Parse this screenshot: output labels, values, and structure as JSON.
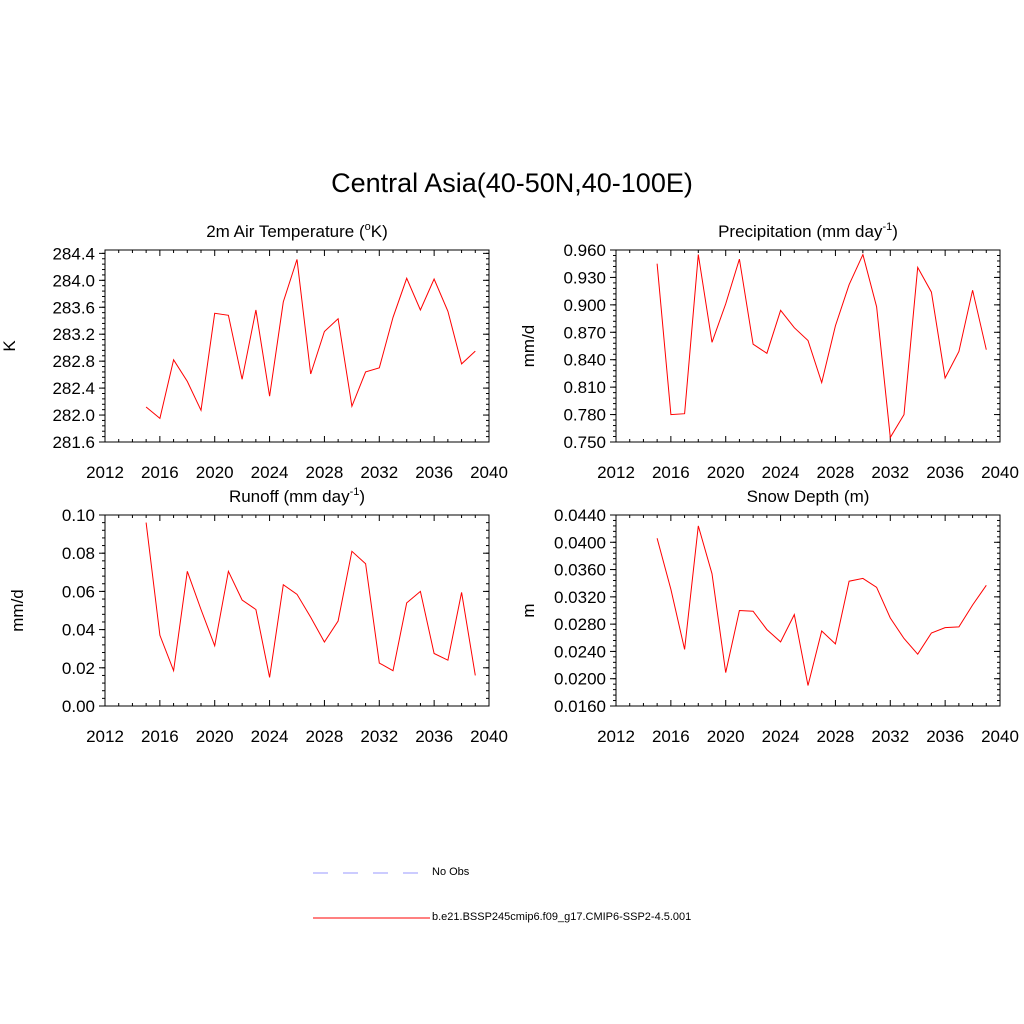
{
  "title": "Central Asia(40-50N,40-100E)",
  "legend": {
    "items": [
      {
        "label": "No Obs",
        "color": "#9999ff",
        "style": "dashed"
      },
      {
        "label": "b.e21.BSSP245cmip6.f09_g17.CMIP6-SSP2-4.5.001",
        "color": "#ff0000",
        "style": "solid"
      }
    ]
  },
  "chart_data": [
    {
      "type": "line",
      "title": "2m Air Temperature (",
      "title_sup": "o",
      "title_tail": "K)",
      "ylabel": "K",
      "xlim": [
        2012,
        2040
      ],
      "xticks": [
        2012,
        2016,
        2020,
        2024,
        2028,
        2032,
        2036,
        2040
      ],
      "ylim": [
        281.6,
        284.45
      ],
      "yticks": [
        281.6,
        282.0,
        282.4,
        282.8,
        283.2,
        283.6,
        284.0,
        284.4
      ],
      "ytick_labels": [
        "281.6",
        "282.0",
        "282.4",
        "282.8",
        "283.2",
        "283.6",
        "284.0",
        "284.4"
      ],
      "x": [
        2015,
        2016,
        2017,
        2018,
        2019,
        2020,
        2021,
        2022,
        2023,
        2024,
        2025,
        2026,
        2027,
        2028,
        2029,
        2030,
        2031,
        2032,
        2033,
        2034,
        2035,
        2036,
        2037,
        2038,
        2039
      ],
      "series": [
        {
          "color": "#ff0000",
          "values": [
            282.12,
            281.95,
            282.82,
            282.5,
            282.07,
            283.51,
            283.48,
            282.53,
            283.56,
            282.28,
            283.68,
            284.31,
            282.61,
            283.24,
            283.43,
            282.13,
            282.64,
            282.7,
            283.45,
            284.03,
            283.56,
            284.02,
            283.54,
            282.76,
            282.95
          ]
        }
      ]
    },
    {
      "type": "line",
      "title": "Precipitation (mm day",
      "title_sup": "-1",
      "title_tail": ")",
      "ylabel": "mm/d",
      "xlim": [
        2012,
        2040
      ],
      "xticks": [
        2012,
        2016,
        2020,
        2024,
        2028,
        2032,
        2036,
        2040
      ],
      "ylim": [
        0.75,
        0.96
      ],
      "yticks": [
        0.75,
        0.78,
        0.81,
        0.84,
        0.87,
        0.9,
        0.93,
        0.96
      ],
      "ytick_labels": [
        "0.750",
        "0.780",
        "0.810",
        "0.840",
        "0.870",
        "0.900",
        "0.930",
        "0.960"
      ],
      "x": [
        2015,
        2016,
        2017,
        2018,
        2019,
        2020,
        2021,
        2022,
        2023,
        2024,
        2025,
        2026,
        2027,
        2028,
        2029,
        2030,
        2031,
        2032,
        2033,
        2034,
        2035,
        2036,
        2037,
        2038,
        2039
      ],
      "series": [
        {
          "color": "#ff0000",
          "values": [
            0.945,
            0.78,
            0.781,
            0.955,
            0.859,
            0.901,
            0.95,
            0.857,
            0.847,
            0.894,
            0.875,
            0.861,
            0.815,
            0.877,
            0.922,
            0.955,
            0.898,
            0.755,
            0.78,
            0.941,
            0.914,
            0.82,
            0.849,
            0.916,
            0.851
          ]
        }
      ]
    },
    {
      "type": "line",
      "title": "Runoff (mm day",
      "title_sup": "-1",
      "title_tail": ")",
      "ylabel": "mm/d",
      "xlim": [
        2012,
        2040
      ],
      "xticks": [
        2012,
        2016,
        2020,
        2024,
        2028,
        2032,
        2036,
        2040
      ],
      "ylim": [
        0.0,
        0.1
      ],
      "yticks": [
        0.0,
        0.02,
        0.04,
        0.06,
        0.08,
        0.1
      ],
      "ytick_labels": [
        "0.00",
        "0.02",
        "0.04",
        "0.06",
        "0.08",
        "0.10"
      ],
      "x": [
        2015,
        2016,
        2017,
        2018,
        2019,
        2020,
        2021,
        2022,
        2023,
        2024,
        2025,
        2026,
        2027,
        2028,
        2029,
        2030,
        2031,
        2032,
        2033,
        2034,
        2035,
        2036,
        2037,
        2038,
        2039
      ],
      "series": [
        {
          "color": "#ff0000",
          "values": [
            0.096,
            0.037,
            0.0185,
            0.0705,
            0.0505,
            0.0315,
            0.0705,
            0.0555,
            0.0505,
            0.015,
            0.0635,
            0.0585,
            0.0465,
            0.0335,
            0.0445,
            0.081,
            0.0745,
            0.0225,
            0.0185,
            0.054,
            0.06,
            0.0275,
            0.024,
            0.0595,
            0.016
          ]
        }
      ]
    },
    {
      "type": "line",
      "title": "Snow Depth (m)",
      "title_sup": "",
      "title_tail": "",
      "ylabel": "m",
      "xlim": [
        2012,
        2040
      ],
      "xticks": [
        2012,
        2016,
        2020,
        2024,
        2028,
        2032,
        2036,
        2040
      ],
      "ylim": [
        0.016,
        0.044
      ],
      "yticks": [
        0.016,
        0.02,
        0.024,
        0.028,
        0.032,
        0.036,
        0.04,
        0.044
      ],
      "ytick_labels": [
        "0.0160",
        "0.0200",
        "0.0240",
        "0.0280",
        "0.0320",
        "0.0360",
        "0.0400",
        "0.0440"
      ],
      "x": [
        2015,
        2016,
        2017,
        2018,
        2019,
        2020,
        2021,
        2022,
        2023,
        2024,
        2025,
        2026,
        2027,
        2028,
        2029,
        2030,
        2031,
        2032,
        2033,
        2034,
        2035,
        2036,
        2037,
        2038,
        2039
      ],
      "series": [
        {
          "color": "#ff0000",
          "values": [
            0.0406,
            0.0331,
            0.0243,
            0.0424,
            0.0354,
            0.0209,
            0.03,
            0.0299,
            0.0272,
            0.0254,
            0.0294,
            0.019,
            0.027,
            0.0251,
            0.0343,
            0.0347,
            0.0334,
            0.0289,
            0.0259,
            0.0236,
            0.0267,
            0.0275,
            0.0276,
            0.0308,
            0.0337
          ]
        }
      ]
    }
  ]
}
